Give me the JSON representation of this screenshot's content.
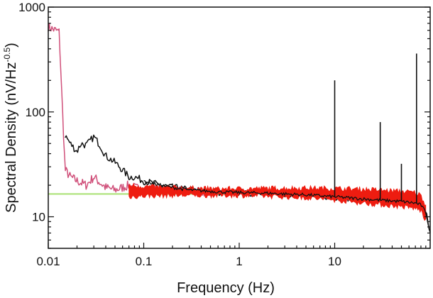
{
  "chart_data": {
    "type": "line",
    "xlabel": "Frequency (Hz)",
    "ylabel_main": "Spectral Density (nV/Hz",
    "ylabel_sup": "-0.5",
    "ylabel_close": ")",
    "xscale": "log",
    "yscale": "log",
    "xlim": [
      0.01,
      100
    ],
    "ylim": [
      5,
      1000
    ],
    "x_ticks": [
      {
        "value": 0.01,
        "label": "0.01"
      },
      {
        "value": 0.1,
        "label": "0.1"
      },
      {
        "value": 1,
        "label": "1"
      },
      {
        "value": 10,
        "label": "10"
      }
    ],
    "y_ticks": [
      {
        "value": 10,
        "label": "10"
      },
      {
        "value": 100,
        "label": "100"
      },
      {
        "value": 1000,
        "label": "1000"
      }
    ],
    "grid": false,
    "legend": "none",
    "colors": {
      "black_trace": "#111111",
      "pink_trace": "#d0507a",
      "red_band": "#ee1c10",
      "green_line": "#a8e070"
    },
    "series": [
      {
        "color_key": "green_line",
        "style": "flat line",
        "x": [
          0.01,
          0.7
        ],
        "y": [
          16.5,
          16.5
        ]
      },
      {
        "color_key": "pink_trace",
        "style": "noisy trace",
        "x": [
          0.01,
          0.011,
          0.012,
          0.013,
          0.015,
          0.017,
          0.02,
          0.025,
          0.03,
          0.035,
          0.04,
          0.05,
          0.06,
          0.07,
          0.08,
          0.1,
          0.15,
          0.2,
          0.3,
          0.5
        ],
        "y": [
          650,
          620,
          600,
          580,
          28,
          24,
          22,
          20,
          24,
          21,
          19,
          18,
          19,
          20,
          19,
          18,
          18,
          17.5,
          17.2,
          17
        ]
      },
      {
        "color_key": "black_trace",
        "style": "noisy trace",
        "x": [
          0.015,
          0.017,
          0.02,
          0.022,
          0.025,
          0.03,
          0.035,
          0.04,
          0.05,
          0.06,
          0.07,
          0.08,
          0.1,
          0.12,
          0.15,
          0.2,
          0.3,
          0.5,
          0.7,
          1,
          2,
          3,
          5,
          10,
          20,
          30,
          50,
          70,
          80,
          90,
          100
        ],
        "y": [
          60,
          50,
          42,
          50,
          48,
          58,
          48,
          38,
          33,
          28,
          24,
          24,
          22,
          21,
          20,
          19,
          18,
          17.5,
          17.2,
          17,
          16.8,
          16.5,
          16.2,
          15.5,
          14.8,
          14.4,
          14,
          13.5,
          13,
          11,
          7
        ]
      },
      {
        "color_key": "red_band",
        "style": "band",
        "x": [
          0.07,
          0.1,
          0.2,
          0.5,
          1,
          2,
          5,
          10,
          20,
          50,
          70,
          80,
          90
        ],
        "y_low": [
          15.5,
          15.8,
          16,
          16,
          16,
          15.7,
          15.2,
          14.5,
          13.5,
          12.5,
          12,
          11.5,
          9
        ],
        "y_high": [
          20,
          19.5,
          19,
          18.5,
          18.5,
          18.7,
          18.8,
          18.6,
          18.3,
          17.5,
          17,
          16,
          13
        ]
      }
    ],
    "spikes": [
      {
        "x": 10,
        "y": 200
      },
      {
        "x": 30,
        "y": 80
      },
      {
        "x": 50,
        "y": 32
      },
      {
        "x": 72,
        "y": 360
      }
    ]
  }
}
